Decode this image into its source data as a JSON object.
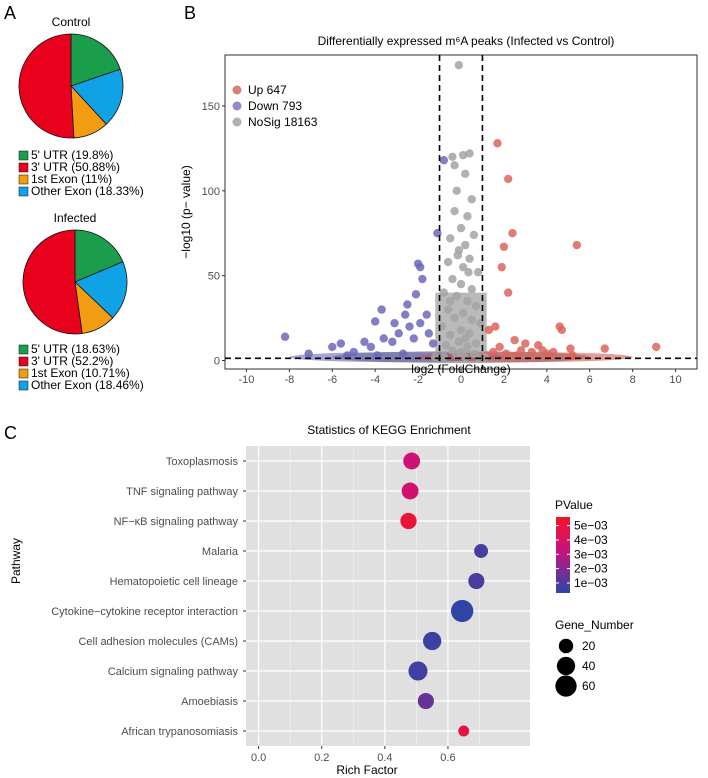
{
  "panels": {
    "a": "A",
    "b": "B",
    "c": "C"
  },
  "chart_data": [
    {
      "type": "pie",
      "title": "Control",
      "slices": [
        {
          "label": "5' UTR (19.8%)",
          "value": 19.8,
          "color": "#1b9e4b"
        },
        {
          "label": "3' UTR (50.88%)",
          "value": 50.88,
          "color": "#e8001c"
        },
        {
          "label": "1st Exon (11%)",
          "value": 11.0,
          "color": "#f39c12"
        },
        {
          "label": "Other Exon (18.33%)",
          "value": 18.33,
          "color": "#0fa3e6"
        }
      ]
    },
    {
      "type": "pie",
      "title": "Infected",
      "slices": [
        {
          "label": "5' UTR (18.63%)",
          "value": 18.63,
          "color": "#1b9e4b"
        },
        {
          "label": "3' UTR (52.2%)",
          "value": 52.2,
          "color": "#e8001c"
        },
        {
          "label": "1st Exon (10.71%)",
          "value": 10.71,
          "color": "#f39c12"
        },
        {
          "label": "Other Exon (18.46%)",
          "value": 18.46,
          "color": "#0fa3e6"
        }
      ]
    },
    {
      "type": "scatter",
      "title": "Differentially expressed m⁶A peaks (Infected vs Control)",
      "xlabel": "log2 (FoldChange)",
      "ylabel": "−log10 (p− value)",
      "xlim": [
        -11,
        11
      ],
      "ylim": [
        -5,
        180
      ],
      "xticks": [
        -10,
        -8,
        -6,
        -4,
        -2,
        0,
        2,
        4,
        6,
        8,
        10
      ],
      "yticks": [
        0,
        50,
        100,
        150
      ],
      "vlines": [
        -1,
        1
      ],
      "hline": 1.3,
      "legend": [
        {
          "label": "Up 647",
          "color": "#db7f73"
        },
        {
          "label": "Down 793",
          "color": "#8f8ccc"
        },
        {
          "label": "NoSig 18163",
          "color": "#b0b0b0"
        }
      ],
      "series": [
        {
          "name": "Up",
          "color": "#d9665c",
          "points": [
            [
              1.7,
              128
            ],
            [
              2.2,
              107
            ],
            [
              2.4,
              75
            ],
            [
              2,
              67
            ],
            [
              5.4,
              68
            ],
            [
              1.9,
              55
            ],
            [
              2.2,
              40
            ],
            [
              1.6,
              20
            ],
            [
              1.3,
              18
            ],
            [
              2.5,
              12
            ],
            [
              3,
              10
            ],
            [
              4.7,
              18
            ],
            [
              4.6,
              20
            ],
            [
              3.6,
              9
            ],
            [
              2.8,
              6
            ],
            [
              1.8,
              8
            ],
            [
              5.1,
              7
            ],
            [
              6.7,
              7
            ],
            [
              9.1,
              8
            ],
            [
              3.3,
              5
            ],
            [
              4,
              4
            ],
            [
              2.1,
              4
            ],
            [
              1.5,
              5
            ],
            [
              5.2,
              3
            ],
            [
              2.6,
              3
            ],
            [
              3.8,
              6
            ],
            [
              4.3,
              5
            ],
            [
              1.2,
              3
            ]
          ]
        },
        {
          "name": "Down",
          "color": "#6c68bb",
          "points": [
            [
              -0.8,
              118
            ],
            [
              -1.1,
              75
            ],
            [
              -2,
              57
            ],
            [
              -1.9,
              55
            ],
            [
              -1.8,
              48
            ],
            [
              -2.1,
              39
            ],
            [
              -3.7,
              30
            ],
            [
              -2.5,
              33
            ],
            [
              -4,
              23
            ],
            [
              -3.1,
              22
            ],
            [
              -1.6,
              27
            ],
            [
              -2.6,
              27
            ],
            [
              -8.2,
              14
            ],
            [
              -7.1,
              4
            ],
            [
              -6,
              8
            ],
            [
              -5.6,
              10
            ],
            [
              -5,
              5
            ],
            [
              -4.5,
              11
            ],
            [
              -4.2,
              8
            ],
            [
              -3.6,
              13
            ],
            [
              -3.2,
              11
            ],
            [
              -2.9,
              16
            ],
            [
              -2.4,
              20
            ],
            [
              -2.2,
              13
            ],
            [
              -1.9,
              22
            ],
            [
              -1.5,
              16
            ],
            [
              -1.3,
              10
            ],
            [
              -3.9,
              3
            ],
            [
              -5.3,
              3
            ],
            [
              -2.7,
              4
            ]
          ]
        },
        {
          "name": "NoSig",
          "color": "#a3a3a3",
          "points": [
            [
              -0.1,
              174
            ],
            [
              -0.4,
              120
            ],
            [
              0.4,
              122
            ],
            [
              0.1,
              121
            ],
            [
              -0.3,
              115
            ],
            [
              0.2,
              110
            ],
            [
              -0.2,
              100
            ],
            [
              0.5,
              95
            ],
            [
              -0.3,
              88
            ],
            [
              0.3,
              85
            ],
            [
              0,
              78
            ],
            [
              0.6,
              74
            ],
            [
              -0.5,
              72
            ],
            [
              0.2,
              68
            ],
            [
              -0.1,
              65
            ],
            [
              0.4,
              60
            ],
            [
              -0.6,
              58
            ],
            [
              0.1,
              55
            ],
            [
              0.8,
              52
            ],
            [
              -0.4,
              48
            ],
            [
              0,
              45
            ],
            [
              0.5,
              42
            ],
            [
              -0.8,
              40
            ],
            [
              -0.2,
              38
            ],
            [
              0.3,
              35
            ],
            [
              0.7,
              32
            ],
            [
              -0.6,
              30
            ],
            [
              0.1,
              28
            ],
            [
              -0.3,
              25
            ],
            [
              0.5,
              24
            ],
            [
              0.9,
              22
            ],
            [
              -0.9,
              20
            ],
            [
              0,
              18
            ],
            [
              0.4,
              16
            ],
            [
              -0.5,
              15
            ],
            [
              0.2,
              13
            ],
            [
              -0.1,
              11
            ],
            [
              0.7,
              10
            ],
            [
              -0.7,
              9
            ],
            [
              0.3,
              8
            ],
            [
              -0.4,
              6
            ],
            [
              0,
              5
            ],
            [
              0.6,
              4
            ],
            [
              -0.2,
              3
            ],
            [
              0.2,
              2
            ],
            [
              0.8,
              2
            ],
            [
              -0.8,
              2
            ],
            [
              1.1,
              2
            ],
            [
              -1.2,
              2
            ],
            [
              -0.5,
              35
            ],
            [
              0.35,
              52
            ],
            [
              -0.15,
              62
            ]
          ]
        }
      ]
    },
    {
      "type": "scatter",
      "title": "Statistics of KEGG Enrichment",
      "xlabel": "Rich Factor",
      "ylabel": "Pathway",
      "xlim": [
        -0.04,
        0.86
      ],
      "xticks": [
        0.0,
        0.2,
        0.4,
        0.6
      ],
      "xtick_labels": [
        "0.0",
        "0.2",
        "0.4",
        "0.6"
      ],
      "categories": [
        "Toxoplasmosis",
        "TNF signaling pathway",
        "NF−κB signaling pathway",
        "Malaria",
        "Hematopoietic cell lineage",
        "Cytokine−cytokine receptor interaction",
        "Cell adhesion molecules (CAMs)",
        "Calcium signaling pathway",
        "Amoebiasis",
        "African trypanosomiasis"
      ],
      "points": [
        {
          "pathway": "Toxoplasmosis",
          "rich_factor": 0.485,
          "gene_number": 32,
          "pvalue": 0.0035
        },
        {
          "pathway": "TNF signaling pathway",
          "rich_factor": 0.48,
          "gene_number": 32,
          "pvalue": 0.0037
        },
        {
          "pathway": "NF−κB signaling pathway",
          "rich_factor": 0.475,
          "gene_number": 29,
          "pvalue": 0.0053
        },
        {
          "pathway": "Malaria",
          "rich_factor": 0.705,
          "gene_number": 18,
          "pvalue": 0.0008
        },
        {
          "pathway": "Hematopoietic cell lineage",
          "rich_factor": 0.69,
          "gene_number": 28,
          "pvalue": 0.0008
        },
        {
          "pathway": "Cytokine−cytokine receptor interaction",
          "rich_factor": 0.645,
          "gene_number": 68,
          "pvalue": 0.0004
        },
        {
          "pathway": "Cell adhesion molecules (CAMs)",
          "rich_factor": 0.55,
          "gene_number": 40,
          "pvalue": 0.0006
        },
        {
          "pathway": "Calcium signaling pathway",
          "rich_factor": 0.505,
          "gene_number": 45,
          "pvalue": 0.0007
        },
        {
          "pathway": "Amoebiasis",
          "rich_factor": 0.53,
          "gene_number": 28,
          "pvalue": 0.0014
        },
        {
          "pathway": "African trypanosomiasis",
          "rich_factor": 0.65,
          "gene_number": 8,
          "pvalue": 0.0049
        }
      ],
      "legend_pvalue": {
        "title": "PValue",
        "ticks": [
          0.005,
          0.004,
          0.003,
          0.002,
          0.001
        ],
        "tick_labels": [
          "5e−03",
          "4e−03",
          "3e−03",
          "2e−03",
          "1e−03"
        ],
        "range": [
          0.0003,
          0.0056
        ],
        "low_color": "#2b46a6",
        "high_color": "#f1142a"
      },
      "legend_size": {
        "title": "Gene_Number",
        "values": [
          20,
          40,
          60
        ],
        "labels": [
          "20",
          "40",
          "60"
        ]
      }
    }
  ]
}
